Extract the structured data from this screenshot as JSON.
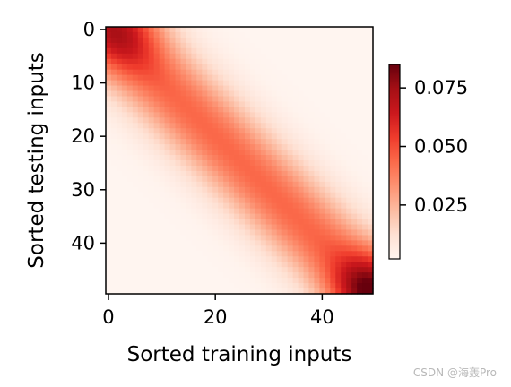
{
  "chart_data": {
    "type": "heatmap",
    "title": "",
    "xlabel": "Sorted training inputs",
    "ylabel": "Sorted testing inputs",
    "n_cols": 50,
    "n_rows": 50,
    "x_ticks": [
      0,
      20,
      40
    ],
    "y_ticks": [
      0,
      10,
      20,
      30,
      40
    ],
    "colormap": "Reds",
    "value_description": "approx. attention weight at row r (testing input) and column c (training input); peak along the diagonal",
    "diagonal_peak_samples": [
      {
        "row": 0,
        "col": 2,
        "value": 0.07
      },
      {
        "row": 10,
        "col": 8,
        "value": 0.045
      },
      {
        "row": 25,
        "col": 25,
        "value": 0.042
      },
      {
        "row": 40,
        "col": 38,
        "value": 0.048
      },
      {
        "row": 49,
        "col": 49,
        "value": 0.085
      }
    ],
    "colorbar": {
      "min": 0.002,
      "max": 0.085,
      "ticks": [
        0.075,
        0.05,
        0.025
      ],
      "tick_labels": [
        "0.075",
        "0.050",
        "0.025"
      ]
    }
  },
  "labels": {
    "x_tick_labels": [
      "0",
      "20",
      "40"
    ],
    "y_tick_labels": [
      "0",
      "10",
      "20",
      "30",
      "40"
    ],
    "watermark": "CSDN @海轰Pro"
  }
}
